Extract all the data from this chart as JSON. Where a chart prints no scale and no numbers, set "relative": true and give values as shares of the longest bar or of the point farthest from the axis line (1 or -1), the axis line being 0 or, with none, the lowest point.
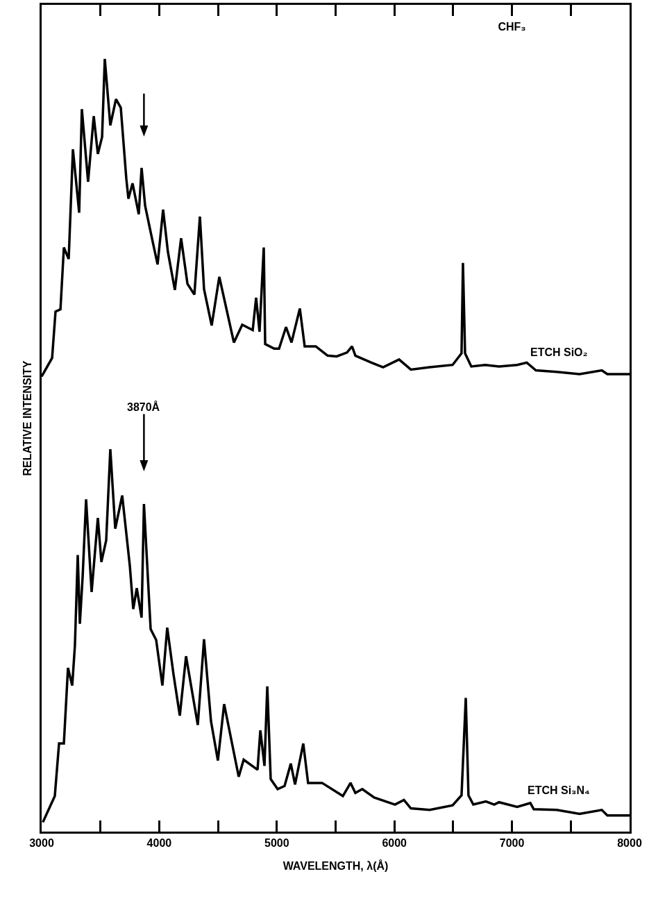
{
  "chart_data": {
    "type": "line",
    "title": "CHF₃",
    "xlabel": "WAVELENGTH, λ(Å)",
    "ylabel": "RELATIVE INTENSITY",
    "relative": true,
    "tick_labels": "x",
    "grid": false,
    "legend": false,
    "marker": "none",
    "line_style": "solid",
    "xlim": [
      3000,
      8000
    ],
    "xticks": [
      3000,
      {
        "value": 3500,
        "label": null
      },
      4000,
      {
        "value": 4500,
        "label": null
      },
      5000,
      {
        "value": 5500,
        "label": null
      },
      6000,
      {
        "value": 6500,
        "label": null
      },
      7000,
      {
        "value": 7500,
        "label": null
      },
      8000
    ],
    "annotations": [
      {
        "text": "3870Å",
        "x": 3870,
        "y": 0.424
      }
    ],
    "series": [
      {
        "name": "ETCH SiO₂",
        "color": "#000000",
        "x": [
          3000,
          3089,
          3118,
          3160,
          3189,
          3230,
          3266,
          3319,
          3342,
          3395,
          3443,
          3478,
          3514,
          3537,
          3584,
          3632,
          3673,
          3720,
          3738,
          3773,
          3826,
          3850,
          3880,
          3938,
          3986,
          4033,
          4074,
          4133,
          4186,
          4240,
          4299,
          4346,
          4381,
          4446,
          4511,
          4635,
          4706,
          4795,
          4824,
          4853,
          4889,
          4901,
          4978,
          5019,
          5078,
          5125,
          5196,
          5237,
          5331,
          5432,
          5509,
          5597,
          5640,
          5668,
          5804,
          5904,
          6040,
          6140,
          6300,
          6495,
          6571,
          6583,
          6601,
          6654,
          6772,
          6890,
          7044,
          7126,
          7203,
          7380,
          7575,
          7764,
          7811,
          8000
        ],
        "values": [
          0.589,
          0.613,
          0.673,
          0.676,
          0.756,
          0.741,
          0.883,
          0.801,
          0.935,
          0.841,
          0.926,
          0.877,
          0.899,
          1.0,
          0.914,
          0.948,
          0.937,
          0.845,
          0.819,
          0.839,
          0.799,
          0.859,
          0.81,
          0.768,
          0.734,
          0.805,
          0.75,
          0.701,
          0.768,
          0.709,
          0.695,
          0.796,
          0.702,
          0.655,
          0.718,
          0.633,
          0.656,
          0.649,
          0.691,
          0.647,
          0.756,
          0.631,
          0.625,
          0.625,
          0.653,
          0.633,
          0.677,
          0.628,
          0.628,
          0.616,
          0.615,
          0.62,
          0.628,
          0.616,
          0.607,
          0.601,
          0.611,
          0.598,
          0.601,
          0.604,
          0.619,
          0.736,
          0.619,
          0.602,
          0.604,
          0.602,
          0.604,
          0.607,
          0.597,
          0.595,
          0.592,
          0.597,
          0.592,
          0.592
        ]
      },
      {
        "name": "ETCH Si₃N₄",
        "color": "#000000",
        "x": [
          3010,
          3112,
          3148,
          3189,
          3224,
          3260,
          3283,
          3307,
          3325,
          3349,
          3378,
          3425,
          3478,
          3508,
          3549,
          3584,
          3626,
          3685,
          3750,
          3779,
          3809,
          3850,
          3870,
          3927,
          3974,
          4027,
          4068,
          4121,
          4175,
          4228,
          4328,
          4381,
          4440,
          4499,
          4552,
          4676,
          4718,
          4836,
          4860,
          4895,
          4919,
          4948,
          5007,
          5066,
          5119,
          5155,
          5225,
          5266,
          5385,
          5562,
          5627,
          5668,
          5727,
          5828,
          6005,
          6081,
          6140,
          6300,
          6495,
          6571,
          6607,
          6630,
          6671,
          6778,
          6849,
          6890,
          7044,
          7156,
          7185,
          7380,
          7575,
          7764,
          7811,
          8000
        ],
        "values": [
          0.012,
          0.046,
          0.114,
          0.114,
          0.212,
          0.189,
          0.241,
          0.358,
          0.269,
          0.331,
          0.43,
          0.31,
          0.406,
          0.349,
          0.377,
          0.495,
          0.392,
          0.435,
          0.344,
          0.288,
          0.315,
          0.277,
          0.424,
          0.262,
          0.248,
          0.189,
          0.264,
          0.204,
          0.15,
          0.227,
          0.138,
          0.249,
          0.143,
          0.092,
          0.165,
          0.071,
          0.093,
          0.08,
          0.131,
          0.085,
          0.188,
          0.068,
          0.055,
          0.059,
          0.088,
          0.061,
          0.114,
          0.063,
          0.063,
          0.046,
          0.063,
          0.05,
          0.055,
          0.044,
          0.035,
          0.041,
          0.03,
          0.028,
          0.034,
          0.047,
          0.173,
          0.047,
          0.035,
          0.039,
          0.035,
          0.038,
          0.032,
          0.037,
          0.029,
          0.028,
          0.023,
          0.028,
          0.021,
          0.021
        ]
      }
    ]
  }
}
